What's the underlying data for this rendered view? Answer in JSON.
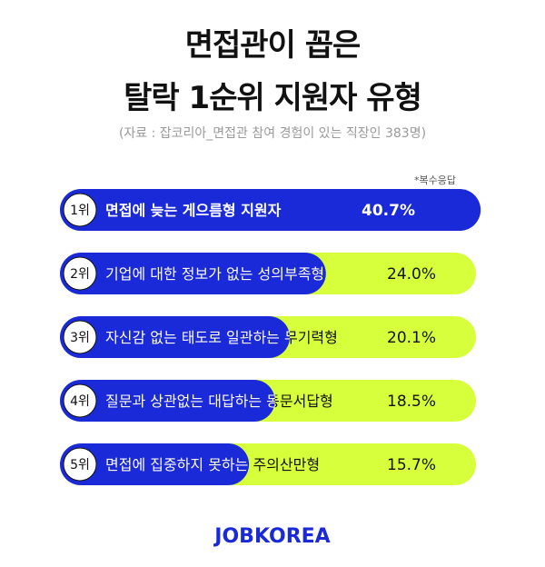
{
  "title_line1": "면접관이 꼽은",
  "title_line2": "탈락 1순위 지원자 유형",
  "source": "(자료 : 잡코리아_면접관 참여 경험이 있는 직장인 383명)",
  "note": "*복수응답",
  "logo": "JOBKOREA",
  "colors": {
    "track": "#d8ff3c",
    "bar": "#1a2ad8",
    "rank_bg": "#ffffff"
  },
  "chart_data": {
    "type": "bar",
    "orientation": "horizontal",
    "categories": [
      "1위",
      "2위",
      "3위",
      "4위",
      "5위"
    ],
    "labels": [
      "면접에 늦는 게으름형  지원자",
      "기업에 대한 정보가 없는  성의부족형",
      "자신감 없는 태도로 일관하는 무기력형",
      "질문과 상관없는 대답하는 동문서답형",
      "면접에  집중하지  못하는 주의산만형"
    ],
    "value_labels": [
      "40.7%",
      "24.0%",
      "20.1%",
      "18.5%",
      "15.7%"
    ],
    "values": [
      40.7,
      24.0,
      20.1,
      18.5,
      15.7
    ]
  }
}
